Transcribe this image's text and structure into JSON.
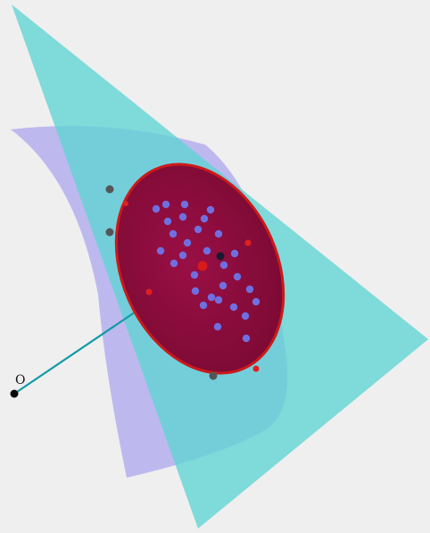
{
  "diagram": {
    "origin_label": "O",
    "colors": {
      "background": "#efefef",
      "cyan_plane": "#5fd3d3",
      "violet_surface": "#a9a4ee",
      "ellipse_fill": "#8b0a3b",
      "ellipse_edge": "#cc1a1a",
      "ray": "#119aa6",
      "blue_points": "#6f6fe0",
      "grey_points": "#555555",
      "center_point": "#d91a1a"
    },
    "counts": {
      "interior_blue_points": 30,
      "exterior_grey_points": 3,
      "ellipse_edge_markers": 4
    }
  }
}
